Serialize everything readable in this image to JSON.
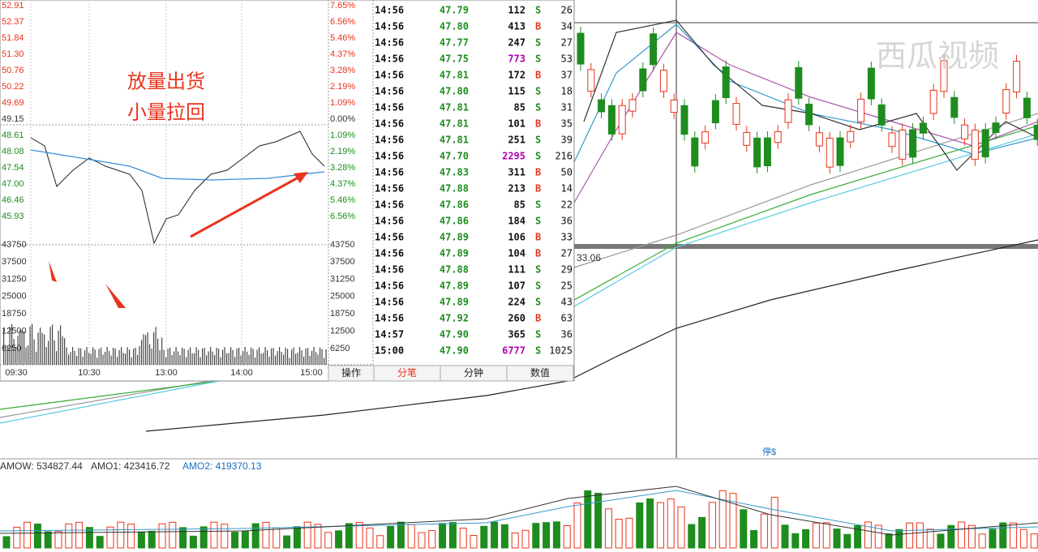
{
  "price_axis_left": [
    "52.91",
    "52.37",
    "51.84",
    "51.30",
    "50.76",
    "50.22",
    "49.69",
    "49.15",
    "48.61",
    "48.08",
    "47.54",
    "47.00",
    "46.46",
    "45.93",
    "43750"
  ],
  "price_axis_right": [
    "7.65%",
    "6.56%",
    "5.46%",
    "4.37%",
    "3.28%",
    "2.19%",
    "1.09%",
    "0.00%",
    "1.09%",
    "2.19%",
    "3.28%",
    "4.37%",
    "5.46%",
    "6.56%",
    "43750"
  ],
  "volume_axis_left": [
    "37500",
    "31250",
    "25000",
    "18750",
    "12500",
    "6250"
  ],
  "volume_axis_right": [
    "37500",
    "31250",
    "25000",
    "18750",
    "12500",
    "6250"
  ],
  "time_axis": [
    "09:30",
    "10:30",
    "13:00",
    "14:00",
    "15:00"
  ],
  "annotation": [
    "放量出货",
    "小量拉回"
  ],
  "trades": [
    [
      "14:56",
      "47.79",
      "112",
      "S",
      "26"
    ],
    [
      "14:56",
      "47.80",
      "413",
      "B",
      "34"
    ],
    [
      "14:56",
      "47.77",
      "247",
      "S",
      "27"
    ],
    [
      "14:56",
      "47.75",
      "773",
      "S",
      "53"
    ],
    [
      "14:56",
      "47.81",
      "172",
      "B",
      "37"
    ],
    [
      "14:56",
      "47.80",
      "115",
      "S",
      "18"
    ],
    [
      "14:56",
      "47.81",
      "85",
      "S",
      "31"
    ],
    [
      "14:56",
      "47.81",
      "101",
      "B",
      "35"
    ],
    [
      "14:56",
      "47.81",
      "251",
      "S",
      "39"
    ],
    [
      "14:56",
      "47.70",
      "2295",
      "S",
      "216"
    ],
    [
      "14:56",
      "47.83",
      "311",
      "B",
      "50"
    ],
    [
      "14:56",
      "47.88",
      "213",
      "B",
      "14"
    ],
    [
      "14:56",
      "47.86",
      "85",
      "S",
      "22"
    ],
    [
      "14:56",
      "47.86",
      "184",
      "S",
      "36"
    ],
    [
      "14:56",
      "47.89",
      "106",
      "B",
      "33"
    ],
    [
      "14:56",
      "47.89",
      "104",
      "B",
      "27"
    ],
    [
      "14:56",
      "47.88",
      "111",
      "S",
      "29"
    ],
    [
      "14:56",
      "47.89",
      "107",
      "S",
      "25"
    ],
    [
      "14:56",
      "47.89",
      "224",
      "S",
      "43"
    ],
    [
      "14:56",
      "47.92",
      "260",
      "B",
      "63"
    ],
    [
      "14:57",
      "47.90",
      "365",
      "S",
      "36"
    ],
    [
      "15:00",
      "47.90",
      "6777",
      "S",
      "1025"
    ]
  ],
  "large_volume_rows": [
    3,
    9,
    21
  ],
  "tabs": [
    "操作",
    "分笔",
    "分钟",
    "数值"
  ],
  "price_marker": "33.06",
  "stop_label": "停$",
  "indicator": {
    "amow": "AMOW: 534827.44",
    "amo1": "AMO1: 423416.72",
    "amo2": "AMO2: 419370.13"
  },
  "watermark": "西瓜视频"
}
